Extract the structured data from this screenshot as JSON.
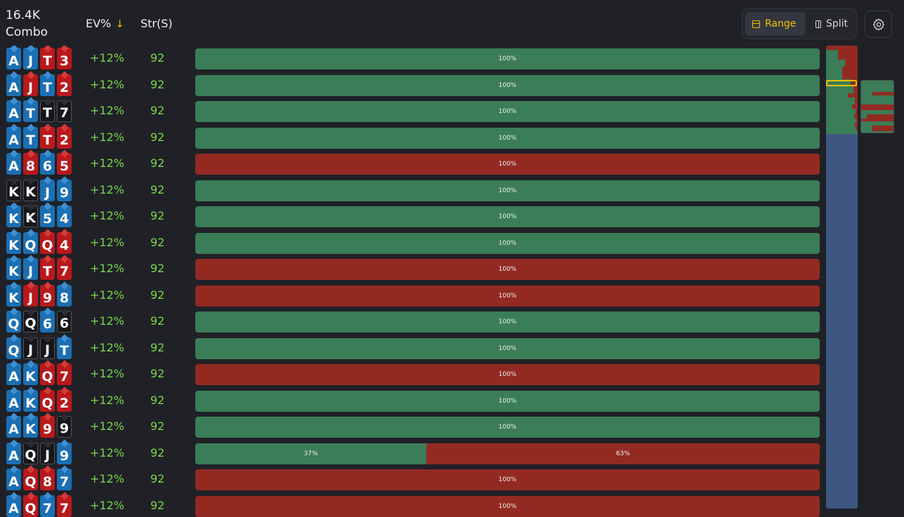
{
  "header": {
    "combo_count": "16.4K",
    "combo_label": "Combo",
    "ev_label": "EV%",
    "ev_sort_icon": "arrow-down-icon",
    "str_label": "Str(S)"
  },
  "toggle": {
    "range_label": "Range",
    "split_label": "Split",
    "active": "Range"
  },
  "settings": {
    "icon": "gear-icon"
  },
  "colors": {
    "green": "#3b7d57",
    "red": "#932a22",
    "accent": "#f2c200",
    "ev_text": "#7bd54b",
    "blue_card": "#1b6fb3",
    "red_card": "#b8191c",
    "black_card": "#16171b"
  },
  "rows": [
    {
      "cards": [
        {
          "r": "A",
          "s": "b"
        },
        {
          "r": "J",
          "s": "b"
        },
        {
          "r": "T",
          "s": "r"
        },
        {
          "r": "3",
          "s": "r"
        }
      ],
      "ev": "+12%",
      "str": "92",
      "segs": [
        {
          "pct": "100%",
          "c": "g",
          "w": 100
        }
      ]
    },
    {
      "cards": [
        {
          "r": "A",
          "s": "b"
        },
        {
          "r": "J",
          "s": "r"
        },
        {
          "r": "T",
          "s": "b"
        },
        {
          "r": "2",
          "s": "r"
        }
      ],
      "ev": "+12%",
      "str": "92",
      "segs": [
        {
          "pct": "100%",
          "c": "g",
          "w": 100
        }
      ]
    },
    {
      "cards": [
        {
          "r": "A",
          "s": "b"
        },
        {
          "r": "T",
          "s": "b"
        },
        {
          "r": "T",
          "s": "k"
        },
        {
          "r": "7",
          "s": "k"
        }
      ],
      "ev": "+12%",
      "str": "92",
      "segs": [
        {
          "pct": "100%",
          "c": "g",
          "w": 100
        }
      ]
    },
    {
      "cards": [
        {
          "r": "A",
          "s": "b"
        },
        {
          "r": "T",
          "s": "b"
        },
        {
          "r": "T",
          "s": "r"
        },
        {
          "r": "2",
          "s": "r"
        }
      ],
      "ev": "+12%",
      "str": "92",
      "segs": [
        {
          "pct": "100%",
          "c": "g",
          "w": 100
        }
      ]
    },
    {
      "cards": [
        {
          "r": "A",
          "s": "b"
        },
        {
          "r": "8",
          "s": "r"
        },
        {
          "r": "6",
          "s": "b"
        },
        {
          "r": "5",
          "s": "r"
        }
      ],
      "ev": "+12%",
      "str": "92",
      "segs": [
        {
          "pct": "100%",
          "c": "r",
          "w": 100
        }
      ]
    },
    {
      "cards": [
        {
          "r": "K",
          "s": "k"
        },
        {
          "r": "K",
          "s": "k"
        },
        {
          "r": "J",
          "s": "b"
        },
        {
          "r": "9",
          "s": "b"
        }
      ],
      "ev": "+12%",
      "str": "92",
      "segs": [
        {
          "pct": "100%",
          "c": "g",
          "w": 100
        }
      ]
    },
    {
      "cards": [
        {
          "r": "K",
          "s": "b"
        },
        {
          "r": "K",
          "s": "k"
        },
        {
          "r": "5",
          "s": "b"
        },
        {
          "r": "4",
          "s": "b"
        }
      ],
      "ev": "+12%",
      "str": "92",
      "segs": [
        {
          "pct": "100%",
          "c": "g",
          "w": 100
        }
      ]
    },
    {
      "cards": [
        {
          "r": "K",
          "s": "b"
        },
        {
          "r": "Q",
          "s": "b"
        },
        {
          "r": "Q",
          "s": "r"
        },
        {
          "r": "4",
          "s": "r"
        }
      ],
      "ev": "+12%",
      "str": "92",
      "segs": [
        {
          "pct": "100%",
          "c": "g",
          "w": 100
        }
      ]
    },
    {
      "cards": [
        {
          "r": "K",
          "s": "b"
        },
        {
          "r": "J",
          "s": "b"
        },
        {
          "r": "T",
          "s": "r"
        },
        {
          "r": "7",
          "s": "r"
        }
      ],
      "ev": "+12%",
      "str": "92",
      "segs": [
        {
          "pct": "100%",
          "c": "r",
          "w": 100
        }
      ]
    },
    {
      "cards": [
        {
          "r": "K",
          "s": "b"
        },
        {
          "r": "J",
          "s": "r"
        },
        {
          "r": "9",
          "s": "r"
        },
        {
          "r": "8",
          "s": "b"
        }
      ],
      "ev": "+12%",
      "str": "92",
      "segs": [
        {
          "pct": "100%",
          "c": "r",
          "w": 100
        }
      ]
    },
    {
      "cards": [
        {
          "r": "Q",
          "s": "b"
        },
        {
          "r": "Q",
          "s": "k"
        },
        {
          "r": "6",
          "s": "b"
        },
        {
          "r": "6",
          "s": "k"
        }
      ],
      "ev": "+12%",
      "str": "92",
      "segs": [
        {
          "pct": "100%",
          "c": "g",
          "w": 100
        }
      ]
    },
    {
      "cards": [
        {
          "r": "Q",
          "s": "b"
        },
        {
          "r": "J",
          "s": "k"
        },
        {
          "r": "J",
          "s": "k"
        },
        {
          "r": "T",
          "s": "b"
        }
      ],
      "ev": "+12%",
      "str": "92",
      "segs": [
        {
          "pct": "100%",
          "c": "g",
          "w": 100
        }
      ]
    },
    {
      "cards": [
        {
          "r": "A",
          "s": "b"
        },
        {
          "r": "K",
          "s": "b"
        },
        {
          "r": "Q",
          "s": "r"
        },
        {
          "r": "7",
          "s": "r"
        }
      ],
      "ev": "+12%",
      "str": "92",
      "segs": [
        {
          "pct": "100%",
          "c": "r",
          "w": 100
        }
      ]
    },
    {
      "cards": [
        {
          "r": "A",
          "s": "b"
        },
        {
          "r": "K",
          "s": "b"
        },
        {
          "r": "Q",
          "s": "r"
        },
        {
          "r": "2",
          "s": "r"
        }
      ],
      "ev": "+12%",
      "str": "92",
      "segs": [
        {
          "pct": "100%",
          "c": "g",
          "w": 100
        }
      ]
    },
    {
      "cards": [
        {
          "r": "A",
          "s": "b"
        },
        {
          "r": "K",
          "s": "b"
        },
        {
          "r": "9",
          "s": "r"
        },
        {
          "r": "9",
          "s": "k"
        }
      ],
      "ev": "+12%",
      "str": "92",
      "segs": [
        {
          "pct": "100%",
          "c": "g",
          "w": 100
        }
      ]
    },
    {
      "cards": [
        {
          "r": "A",
          "s": "b"
        },
        {
          "r": "Q",
          "s": "k"
        },
        {
          "r": "J",
          "s": "k"
        },
        {
          "r": "9",
          "s": "b"
        }
      ],
      "ev": "+12%",
      "str": "92",
      "segs": [
        {
          "pct": "37%",
          "c": "g",
          "w": 37
        },
        {
          "pct": "63%",
          "c": "r",
          "w": 63
        }
      ]
    },
    {
      "cards": [
        {
          "r": "A",
          "s": "b"
        },
        {
          "r": "Q",
          "s": "r"
        },
        {
          "r": "8",
          "s": "r"
        },
        {
          "r": "7",
          "s": "b"
        }
      ],
      "ev": "+12%",
      "str": "92",
      "segs": [
        {
          "pct": "100%",
          "c": "r",
          "w": 100
        }
      ]
    },
    {
      "cards": [
        {
          "r": "A",
          "s": "b"
        },
        {
          "r": "Q",
          "s": "r"
        },
        {
          "r": "7",
          "s": "b"
        },
        {
          "r": "7",
          "s": "r"
        }
      ],
      "ev": "+12%",
      "str": "92",
      "segs": [
        {
          "pct": "100%",
          "c": "r",
          "w": 100
        }
      ]
    }
  ]
}
